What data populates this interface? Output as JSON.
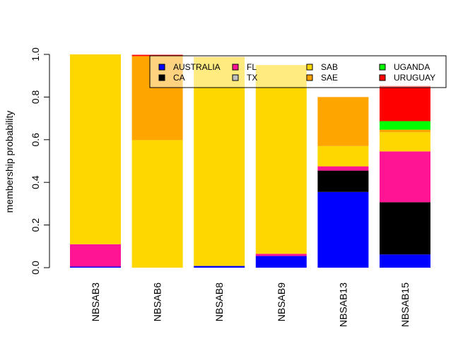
{
  "chart_data": {
    "type": "bar",
    "stacked": true,
    "title": "",
    "xlabel": "",
    "ylabel": "membership probability",
    "ylim": [
      0,
      1
    ],
    "yticks": [
      "0.0",
      "0.2",
      "0.4",
      "0.6",
      "0.8",
      "1.0"
    ],
    "categories": [
      "NBSAB3",
      "NBSAB6",
      "NBSAB8",
      "NBSAB9",
      "NBSAB13",
      "NBSAB15"
    ],
    "legend_position": "top-right",
    "series": [
      {
        "name": "AUSTRALIA",
        "color": "#0000ff",
        "values": [
          0.005,
          0.0,
          0.008,
          0.055,
          0.355,
          0.062
        ]
      },
      {
        "name": "CA",
        "color": "#000000",
        "values": [
          0.0,
          0.0,
          0.0,
          0.0,
          0.1,
          0.245
        ]
      },
      {
        "name": "FL",
        "color": "#ff1493",
        "values": [
          0.105,
          0.0,
          0.0,
          0.01,
          0.02,
          0.238
        ]
      },
      {
        "name": "TX",
        "color": "#c0c0c0",
        "values": [
          0.0,
          0.0,
          0.0,
          0.0,
          0.0,
          0.0
        ]
      },
      {
        "name": "SAB",
        "color": "#ffd700",
        "values": [
          0.89,
          0.598,
          0.977,
          0.885,
          0.095,
          0.09
        ]
      },
      {
        "name": "SAE",
        "color": "#ffa500",
        "values": [
          0.0,
          0.394,
          0.003,
          0.0,
          0.23,
          0.012
        ]
      },
      {
        "name": "UGANDA",
        "color": "#00ff00",
        "values": [
          0.0,
          0.0,
          0.0,
          0.0,
          0.0,
          0.04
        ]
      },
      {
        "name": "URUGUAY",
        "color": "#ff0000",
        "values": [
          0.0,
          0.006,
          0.0,
          0.0,
          0.0,
          0.165
        ]
      }
    ],
    "overlay_note": "semi-transparent white legend box overlays upper bars"
  }
}
